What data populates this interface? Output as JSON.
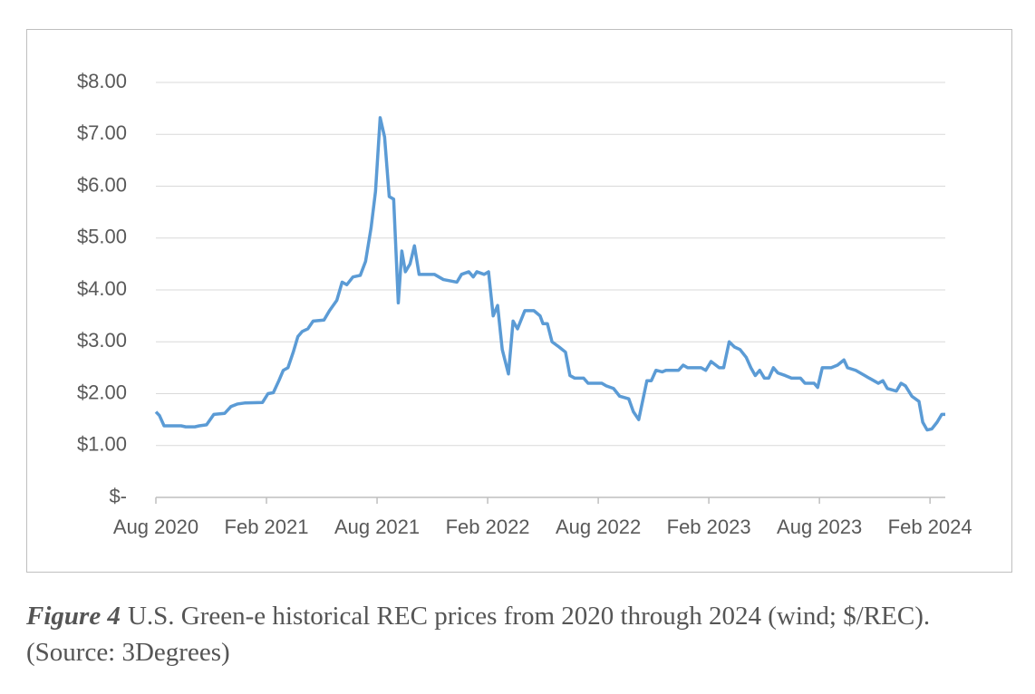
{
  "chart_data": {
    "type": "line",
    "color": "#5b9bd5",
    "grid": true,
    "x": [
      2020.583,
      2020.599,
      2020.62,
      2020.697,
      2020.718,
      2020.759,
      2020.779,
      2020.812,
      2020.845,
      2020.894,
      2020.922,
      2020.951,
      2020.984,
      2021.065,
      2021.09,
      2021.114,
      2021.139,
      2021.159,
      2021.18,
      2021.204,
      2021.225,
      2021.245,
      2021.27,
      2021.294,
      2021.343,
      2021.368,
      2021.401,
      2021.425,
      2021.446,
      2021.474,
      2021.507,
      2021.531,
      2021.556,
      2021.576,
      2021.597,
      2021.617,
      2021.638,
      2021.658,
      2021.679,
      2021.695,
      2021.711,
      2021.732,
      2021.752,
      2021.773,
      2021.842,
      2021.883,
      2021.944,
      2021.965,
      2021.998,
      2022.018,
      2022.034,
      2022.067,
      2022.087,
      2022.108,
      2022.128,
      2022.149,
      2022.177,
      2022.198,
      2022.218,
      2022.251,
      2022.292,
      2022.32,
      2022.333,
      2022.353,
      2022.374,
      2022.406,
      2022.435,
      2022.455,
      2022.476,
      2022.517,
      2022.537,
      2022.599,
      2022.619,
      2022.652,
      2022.68,
      2022.721,
      2022.742,
      2022.766,
      2022.803,
      2022.823,
      2022.844,
      2022.872,
      2022.889,
      2022.946,
      2022.967,
      2022.987,
      2023.048,
      2023.069,
      2023.093,
      2023.13,
      2023.15,
      2023.175,
      2023.199,
      2023.224,
      2023.252,
      2023.273,
      2023.293,
      2023.313,
      2023.334,
      2023.354,
      2023.375,
      2023.395,
      2023.428,
      2023.457,
      2023.497,
      2023.518,
      2023.559,
      2023.575,
      2023.596,
      2023.636,
      2023.665,
      2023.694,
      2023.71,
      2023.747,
      2023.788,
      2023.808,
      2023.829,
      2023.849,
      2023.87,
      2023.89,
      2023.931,
      2023.952,
      2023.972,
      2024.001,
      2024.033,
      2024.05,
      2024.07,
      2024.091,
      2024.115,
      2024.136,
      2024.152
    ],
    "values": [
      1.65,
      1.58,
      1.38,
      1.38,
      1.36,
      1.36,
      1.38,
      1.4,
      1.6,
      1.62,
      1.75,
      1.8,
      1.82,
      1.83,
      2.0,
      2.02,
      2.25,
      2.45,
      2.5,
      2.8,
      3.1,
      3.2,
      3.25,
      3.4,
      3.42,
      3.6,
      3.8,
      4.15,
      4.1,
      4.25,
      4.28,
      4.55,
      5.2,
      5.9,
      7.32,
      6.95,
      5.8,
      5.75,
      3.75,
      4.75,
      4.35,
      4.5,
      4.85,
      4.3,
      4.3,
      4.2,
      4.15,
      4.3,
      4.35,
      4.25,
      4.35,
      4.3,
      4.35,
      3.5,
      3.7,
      2.85,
      2.38,
      3.4,
      3.25,
      3.6,
      3.6,
      3.5,
      3.35,
      3.35,
      3.0,
      2.9,
      2.8,
      2.35,
      2.3,
      2.3,
      2.2,
      2.2,
      2.15,
      2.1,
      1.95,
      1.9,
      1.65,
      1.5,
      2.25,
      2.25,
      2.45,
      2.42,
      2.45,
      2.45,
      2.55,
      2.5,
      2.5,
      2.45,
      2.62,
      2.5,
      2.5,
      3.0,
      2.9,
      2.85,
      2.7,
      2.5,
      2.35,
      2.45,
      2.3,
      2.3,
      2.5,
      2.4,
      2.35,
      2.3,
      2.3,
      2.2,
      2.2,
      2.12,
      2.5,
      2.5,
      2.55,
      2.65,
      2.5,
      2.45,
      2.35,
      2.3,
      2.25,
      2.2,
      2.25,
      2.1,
      2.05,
      2.2,
      2.15,
      1.95,
      1.85,
      1.45,
      1.3,
      1.32,
      1.45,
      1.6,
      1.6
    ],
    "xlim": [
      2020.583,
      2024.152
    ],
    "xticks": [
      {
        "value": 2020.583,
        "label": "Aug 2020"
      },
      {
        "value": 2021.083,
        "label": "Feb 2021"
      },
      {
        "value": 2021.583,
        "label": "Aug 2021"
      },
      {
        "value": 2022.083,
        "label": "Feb 2022"
      },
      {
        "value": 2022.583,
        "label": "Aug 2022"
      },
      {
        "value": 2023.083,
        "label": "Feb 2023"
      },
      {
        "value": 2023.583,
        "label": "Aug 2023"
      },
      {
        "value": 2024.083,
        "label": "Feb 2024"
      }
    ],
    "ylim": [
      0,
      8
    ],
    "yticks": [
      {
        "value": 0,
        "label": "$-"
      },
      {
        "value": 1,
        "label": "$1.00"
      },
      {
        "value": 2,
        "label": "$2.00"
      },
      {
        "value": 3,
        "label": "$3.00"
      },
      {
        "value": 4,
        "label": "$4.00"
      },
      {
        "value": 5,
        "label": "$5.00"
      },
      {
        "value": 6,
        "label": "$6.00"
      },
      {
        "value": 7,
        "label": "$7.00"
      },
      {
        "value": 8,
        "label": "$8.00"
      }
    ]
  },
  "caption": {
    "label": "Figure 4",
    "text": "U.S. Green-e historical REC prices from 2020 through 2024 (wind; $/REC). (Source: 3Degrees)"
  }
}
